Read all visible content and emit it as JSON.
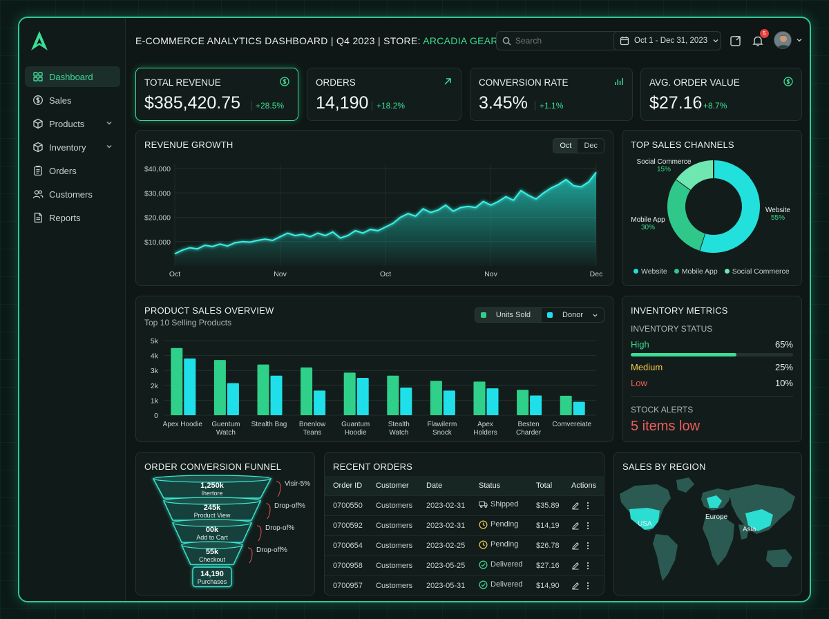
{
  "header": {
    "title_prefix": "E-COMMERCE ANALYTICS DASHBOARD | Q4 2023 | STORE: ",
    "store_name": "ARCADIA GEAR",
    "search_placeholder": "Search",
    "date_range": "Oct 1 - Dec 31, 2023",
    "notification_count": "5"
  },
  "sidebar": {
    "items": [
      {
        "label": "Dashboard",
        "icon": "grid-icon",
        "active": true
      },
      {
        "label": "Sales",
        "icon": "dollar-icon"
      },
      {
        "label": "Products",
        "icon": "box-icon",
        "expandable": true
      },
      {
        "label": "Inventory",
        "icon": "box-icon",
        "expandable": true
      },
      {
        "label": "Orders",
        "icon": "clipboard-icon"
      },
      {
        "label": "Customers",
        "icon": "users-icon"
      },
      {
        "label": "Reports",
        "icon": "document-icon"
      }
    ]
  },
  "kpis": [
    {
      "label": "TOTAL REVENUE",
      "value": "$385,420.75",
      "delta": "+28.5%",
      "icon": "dollar-circle-icon"
    },
    {
      "label": "ORDERS",
      "value": "14,190",
      "delta": "+18.2%",
      "icon": "arrow-up-right-icon"
    },
    {
      "label": "CONVERSION RATE",
      "value": "3.45%",
      "delta": "+1.1%",
      "icon": "bar-chart-icon"
    },
    {
      "label": "AVG. ORDER VALUE",
      "value": "$27.16",
      "delta": "+8.7%",
      "icon": "dollar-circle-icon"
    }
  ],
  "revenue": {
    "title": "REVENUE GROWTH",
    "toggle": [
      "Oct",
      "Dec"
    ],
    "chart_data": {
      "type": "area",
      "title": "REVENUE GROWTH",
      "y_ticks": [
        "$40,000",
        "$30,000",
        "$20,000",
        "$10,000"
      ],
      "x_ticks": [
        "Oct",
        "Nov",
        "Oct",
        "Nov",
        "Dec"
      ],
      "ylim": [
        0,
        42000
      ],
      "values": [
        5000,
        6500,
        7500,
        7000,
        8500,
        8000,
        9000,
        8200,
        9500,
        10000,
        9800,
        10500,
        11000,
        10500,
        12000,
        13500,
        12500,
        13000,
        12000,
        13500,
        12500,
        14000,
        11500,
        12500,
        14500,
        13500,
        15000,
        14500,
        16000,
        17500,
        20000,
        21500,
        20500,
        23500,
        22000,
        23000,
        25000,
        22500,
        24000,
        24500,
        24000,
        26500,
        25000,
        26500,
        28500,
        27000,
        31000,
        29000,
        27500,
        30000,
        32000,
        33500,
        35500,
        33000,
        32500,
        34500,
        38500
      ]
    }
  },
  "channels": {
    "title": "TOP SALES CHANNELS",
    "chart_data": {
      "type": "pie",
      "slices": [
        {
          "name": "Website",
          "value": 55,
          "color": "#22e0dc"
        },
        {
          "name": "Mobile App",
          "value": 30,
          "color": "#2fc88a"
        },
        {
          "name": "Social Commerce",
          "value": 15,
          "color": "#6ee7b0"
        }
      ]
    },
    "labels": {
      "website": {
        "name": "Website",
        "pct": "55%"
      },
      "mobile": {
        "name": "Mobile App",
        "pct": "30%"
      },
      "social": {
        "name": "Social Commerce",
        "pct": "15%"
      }
    },
    "legend": [
      "Website",
      "Mobile App",
      "Social Commerce"
    ]
  },
  "products": {
    "title": "PRODUCT SALES OVERVIEW",
    "subtitle": "Top 10 Selling Products",
    "legend": [
      "Units Sold",
      "Donor"
    ],
    "chart_data": {
      "type": "bar",
      "y_ticks": [
        "5k",
        "4k",
        "3k",
        "2k",
        "1k",
        "0"
      ],
      "ylim": [
        0,
        5000
      ],
      "categories": [
        [
          "Apex Hoodie"
        ],
        [
          "Guentum",
          "Watch"
        ],
        [
          "Stealth Bag"
        ],
        [
          "Bnenlow",
          "Teans"
        ],
        [
          "Guantum",
          "Hoodie"
        ],
        [
          "Stealth",
          "Watch"
        ],
        [
          "Flawilerm",
          "Snock"
        ],
        [
          "Apex",
          "Holders"
        ],
        [
          "Besten",
          "Charder"
        ],
        [
          "Comvereiate"
        ]
      ],
      "series": [
        {
          "name": "Units Sold",
          "color": "#2fd08a",
          "values": [
            4500,
            3700,
            3400,
            3200,
            2850,
            2650,
            2300,
            2250,
            1700,
            1300
          ]
        },
        {
          "name": "Donor",
          "color": "#1fe0e8",
          "values": [
            3800,
            2150,
            2650,
            1650,
            2500,
            1850,
            1650,
            1800,
            1320,
            900
          ]
        }
      ]
    }
  },
  "inventory": {
    "title": "INVENTORY METRICS",
    "status_title": "INVENTORY STATUS",
    "rows": [
      {
        "label": "High",
        "pct": "65%",
        "color": "#3ddc97",
        "level": 0.65
      },
      {
        "label": "Medium",
        "pct": "25%",
        "color": "#f2c94c"
      },
      {
        "label": "Low",
        "pct": "10%",
        "color": "#f25c5c"
      }
    ],
    "alerts_title": "STOCK ALERTS",
    "alerts_value": "5 items low"
  },
  "funnel": {
    "title": "ORDER CONVERSION FUNNEL",
    "stages": [
      {
        "value": "1,250k",
        "label": "Ihertore",
        "note": "Visir-5%"
      },
      {
        "value": "245k",
        "label": "Product View",
        "note": "Drop-off%"
      },
      {
        "value": "00k",
        "label": "Add to Cart",
        "note": "Drop-of%"
      },
      {
        "value": "55k",
        "label": "Checkout",
        "note": "Drop-off%"
      },
      {
        "value": "14,190",
        "label": "Purchases"
      }
    ]
  },
  "orders": {
    "title": "RECENT ORDERS",
    "columns": [
      "Order ID",
      "Customer",
      "Date",
      "Status",
      "Total",
      "Actions"
    ],
    "rows": [
      {
        "id": "0700550",
        "customer": "Customers",
        "date": "2023-02-31",
        "status": "Shipped",
        "total": "$35.89",
        "status_icon": "truck-icon"
      },
      {
        "id": "0700592",
        "customer": "Customers",
        "date": "2023-02-31",
        "status": "Pending",
        "total": "$14,19",
        "status_icon": "clock-icon"
      },
      {
        "id": "0700654",
        "customer": "Customers",
        "date": "2023-02-25",
        "status": "Pending",
        "total": "$26.78",
        "status_icon": "clock-icon"
      },
      {
        "id": "0700958",
        "customer": "Customers",
        "date": "2023-05-25",
        "status": "Delivered",
        "total": "$27.16",
        "status_icon": "check-circle-icon"
      },
      {
        "id": "0700957",
        "customer": "Customers",
        "date": "2023-05-31",
        "status": "Delivered",
        "total": "$14,90",
        "status_icon": "check-circle-icon"
      }
    ]
  },
  "region": {
    "title": "SALES BY REGION",
    "labels": [
      "USA",
      "Europe",
      "Asia"
    ]
  }
}
